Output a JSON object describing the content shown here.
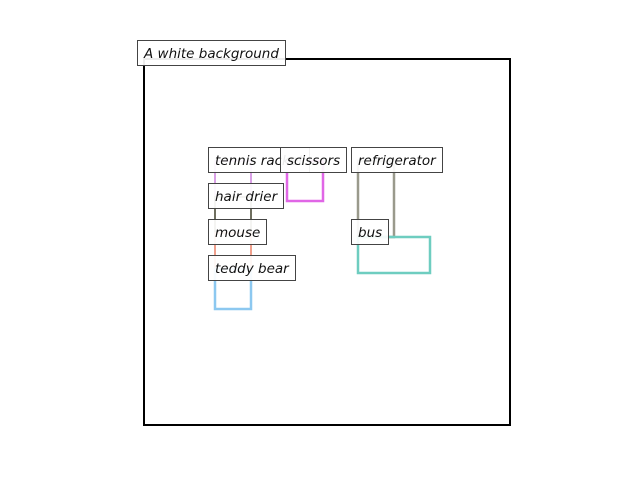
{
  "scene": {
    "caption": "A white background",
    "objects": [
      {
        "id": "tennis-racket",
        "label": "tennis racket",
        "color": "#d9a0e6"
      },
      {
        "id": "scissors",
        "label": "scissors",
        "color": "#e066e6"
      },
      {
        "id": "refrigerator",
        "label": "refrigerator",
        "color": "#9a9a8c"
      },
      {
        "id": "hair-drier",
        "label": "hair drier",
        "color": "#6e6e5e"
      },
      {
        "id": "mouse",
        "label": "mouse",
        "color": "#f0a08c"
      },
      {
        "id": "bus",
        "label": "bus",
        "color": "#6ecdc0"
      },
      {
        "id": "teddy-bear",
        "label": "teddy bear",
        "color": "#8cc8f0"
      }
    ]
  }
}
